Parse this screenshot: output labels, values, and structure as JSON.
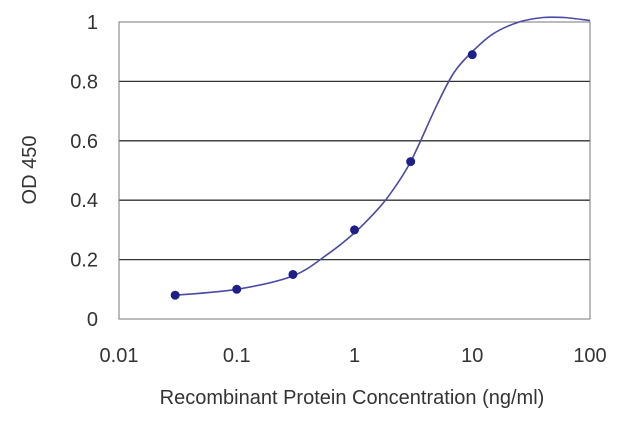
{
  "chart_data": {
    "type": "scatter",
    "xlabel": "Recombinant Protein Concentration (ng/ml)",
    "ylabel": "OD 450",
    "xscale": "log",
    "xlim": [
      0.01,
      100
    ],
    "ylim": [
      0,
      1
    ],
    "xticks": [
      "0.01",
      "0.1",
      "1",
      "10",
      "100"
    ],
    "yticks": [
      "0",
      "0.2",
      "0.4",
      "0.6",
      "0.8",
      "1"
    ],
    "grid": "horizontal",
    "legend": "none",
    "series": [
      {
        "points": [
          {
            "x": 0.03,
            "y": 0.08
          },
          {
            "x": 0.1,
            "y": 0.1
          },
          {
            "x": 0.3,
            "y": 0.15
          },
          {
            "x": 1,
            "y": 0.3
          },
          {
            "x": 3,
            "y": 0.53
          },
          {
            "x": 10,
            "y": 0.89
          }
        ],
        "curve": [
          {
            "x": 0.03,
            "y": 0.08
          },
          {
            "x": 0.1,
            "y": 0.1
          },
          {
            "x": 0.3,
            "y": 0.145
          },
          {
            "x": 0.6,
            "y": 0.22
          },
          {
            "x": 1,
            "y": 0.29
          },
          {
            "x": 1.5,
            "y": 0.36
          },
          {
            "x": 2,
            "y": 0.42
          },
          {
            "x": 3,
            "y": 0.53
          },
          {
            "x": 5,
            "y": 0.72
          },
          {
            "x": 7,
            "y": 0.83
          },
          {
            "x": 10,
            "y": 0.9
          },
          {
            "x": 15,
            "y": 0.96
          },
          {
            "x": 25,
            "y": 1.0
          },
          {
            "x": 40,
            "y": 1.015
          },
          {
            "x": 60,
            "y": 1.015
          },
          {
            "x": 100,
            "y": 1.005
          }
        ]
      }
    ],
    "colors": {
      "series": "#1f1f8a",
      "curve": "#4a4aa6",
      "grid": "#333333",
      "frame": "#777777",
      "text": "#333333"
    }
  }
}
